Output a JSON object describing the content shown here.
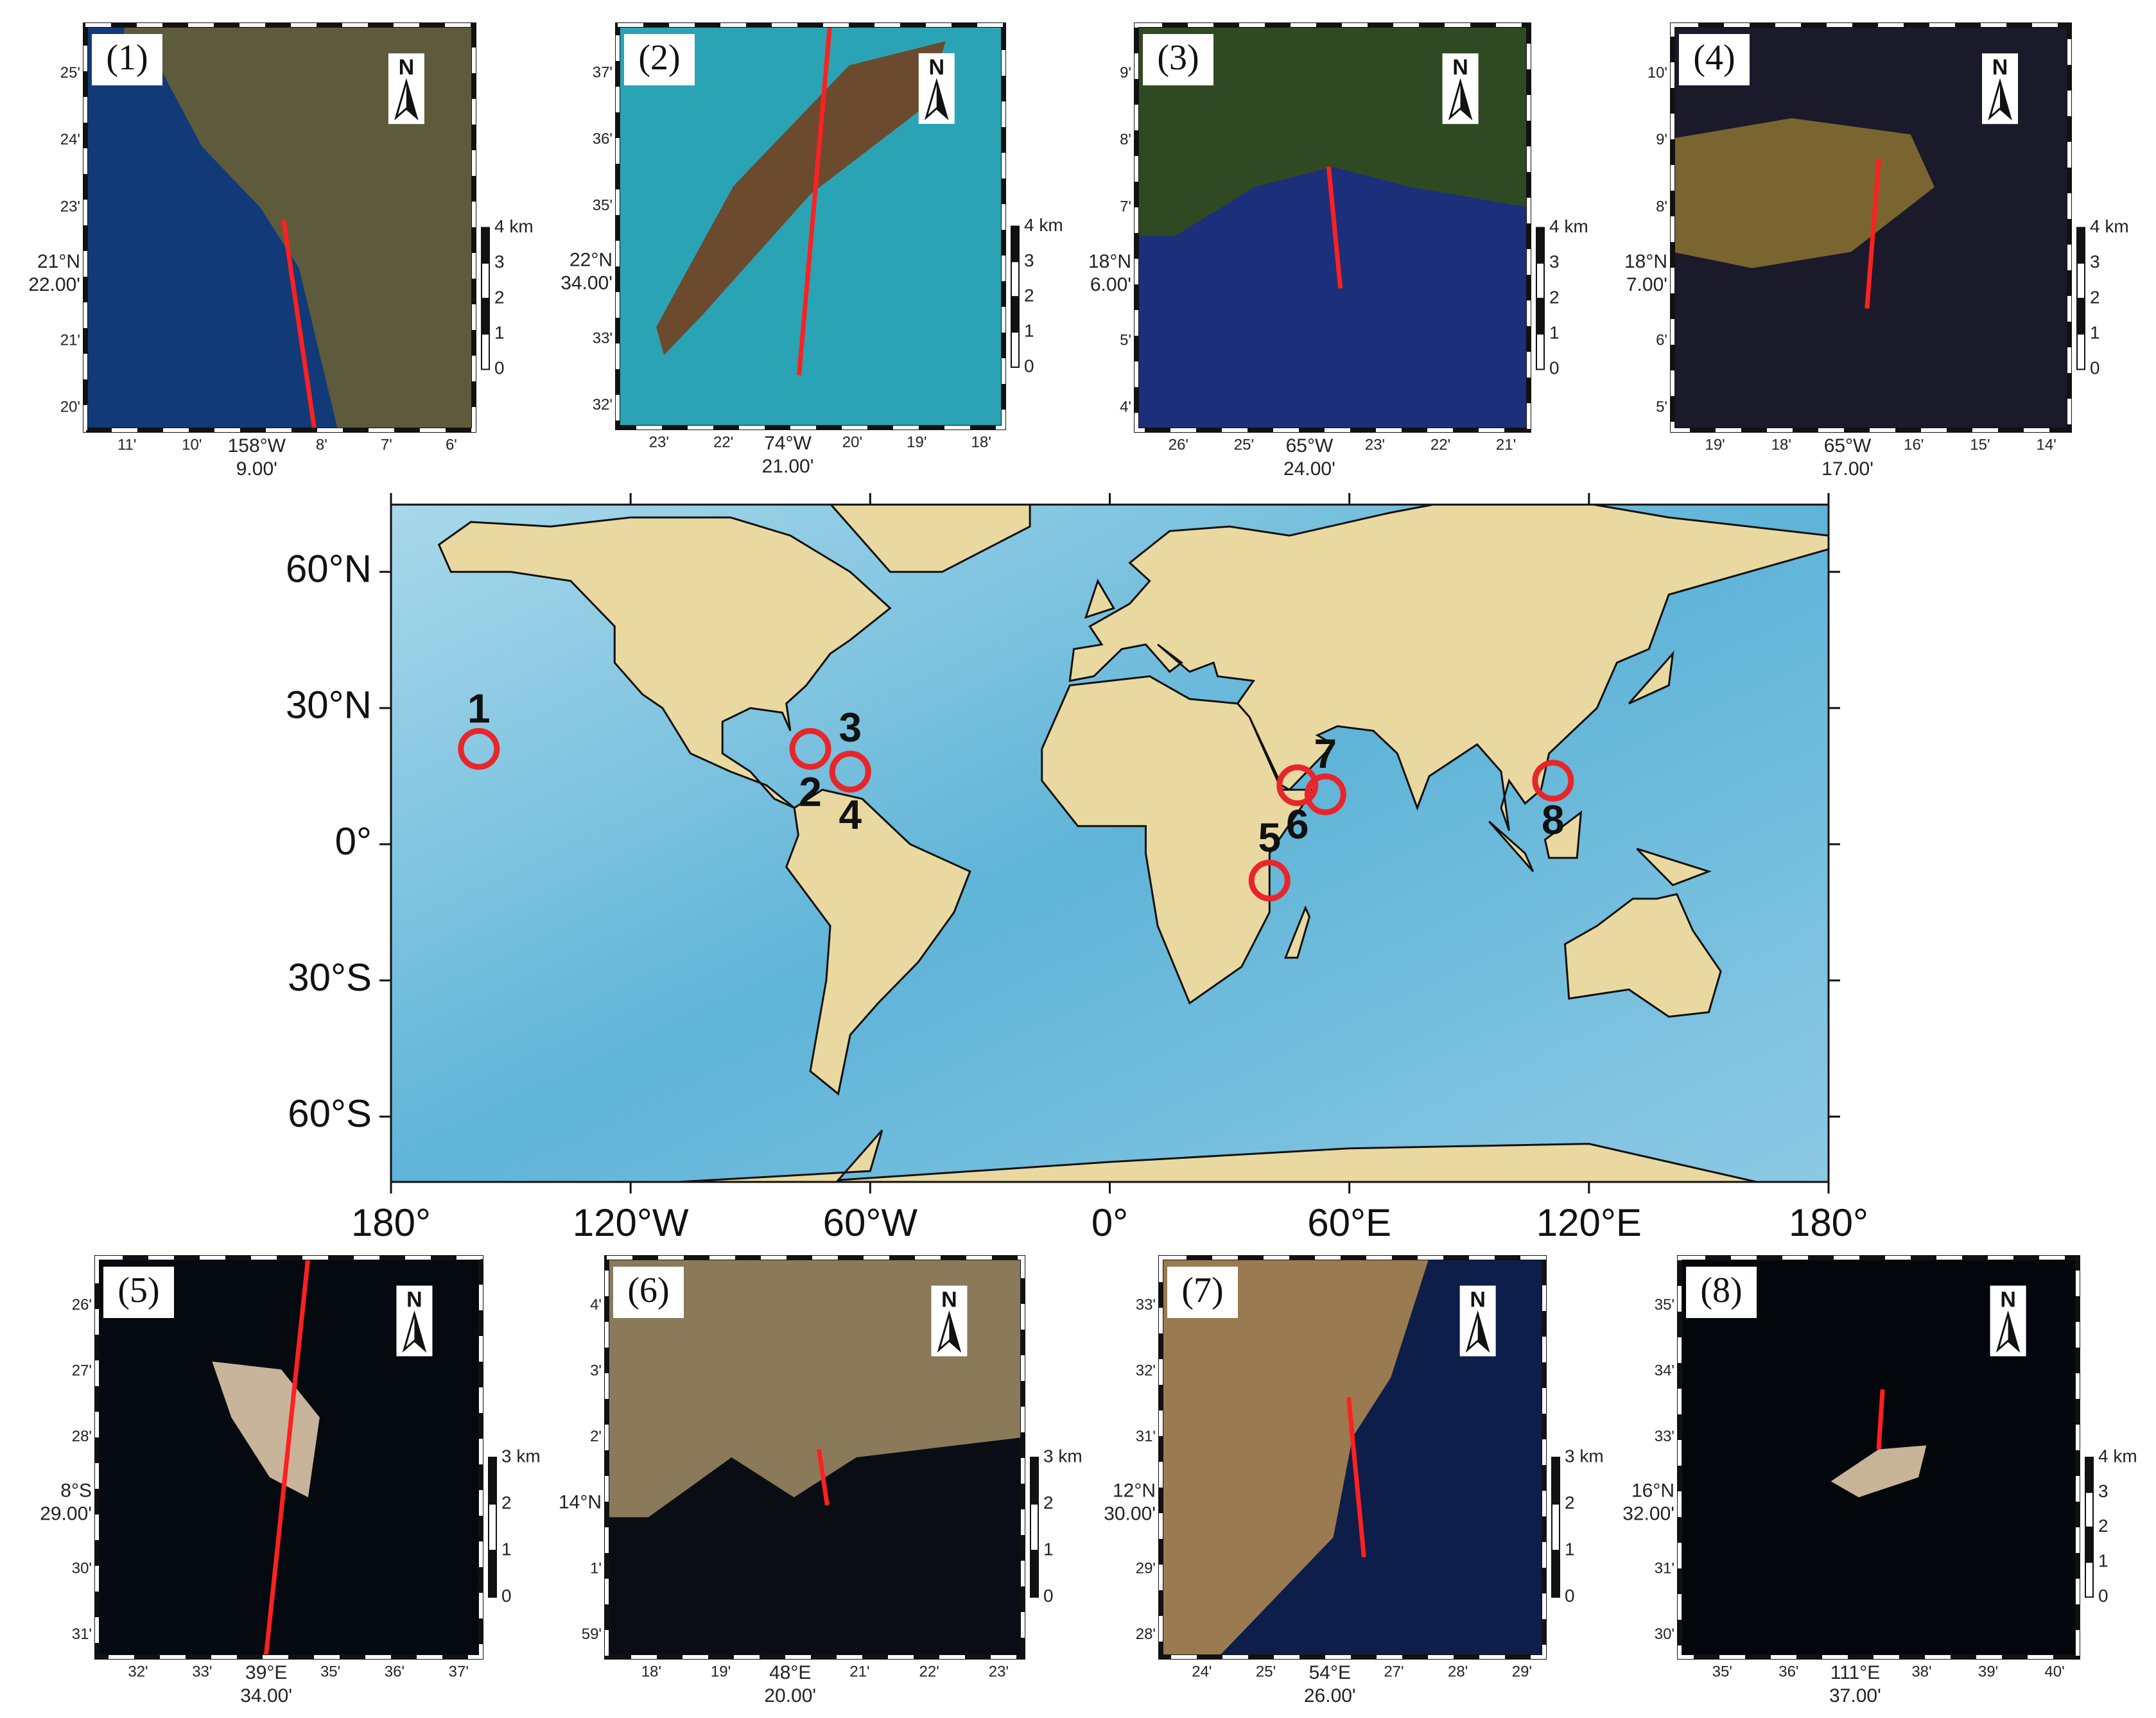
{
  "main_map": {
    "lat_ticks": [
      "60°N",
      "30°N",
      "0°",
      "30°S",
      "60°S"
    ],
    "lon_ticks": [
      "180°",
      "120°W",
      "60°W",
      "0°",
      "60°E",
      "120°E",
      "180°"
    ],
    "sites": [
      "1",
      "2",
      "3",
      "4",
      "5",
      "6",
      "7",
      "8"
    ]
  },
  "panels": [
    {
      "label": "(1)",
      "north": "N",
      "y_ticks": [
        "25'",
        "24'",
        "23'",
        "21'",
        "20'"
      ],
      "x_ticks": [
        "11'",
        "10'",
        "8'",
        "7'",
        "6'"
      ],
      "center_lat": [
        "21°N",
        "22.00'"
      ],
      "center_lon": [
        "158°W",
        "9.00'"
      ],
      "scale_labels": [
        "4 km",
        "3",
        "2",
        "1",
        "0"
      ]
    },
    {
      "label": "(2)",
      "north": "N",
      "y_ticks": [
        "37'",
        "36'",
        "35'",
        "33'",
        "32'"
      ],
      "x_ticks": [
        "23'",
        "22'",
        "20'",
        "19'",
        "18'"
      ],
      "center_lat": [
        "22°N",
        "34.00'"
      ],
      "center_lon": [
        "74°W",
        "21.00'"
      ],
      "scale_labels": [
        "4 km",
        "3",
        "2",
        "1",
        "0"
      ]
    },
    {
      "label": "(3)",
      "north": "N",
      "y_ticks": [
        "9'",
        "8'",
        "7'",
        "5'",
        "4'"
      ],
      "x_ticks": [
        "26'",
        "25'",
        "23'",
        "22'",
        "21'"
      ],
      "center_lat": [
        "18°N",
        "6.00'"
      ],
      "center_lon": [
        "65°W",
        "24.00'"
      ],
      "scale_labels": [
        "4 km",
        "3",
        "2",
        "1",
        "0"
      ]
    },
    {
      "label": "(4)",
      "north": "N",
      "y_ticks": [
        "10'",
        "9'",
        "8'",
        "6'",
        "5'"
      ],
      "x_ticks": [
        "19'",
        "18'",
        "16'",
        "15'",
        "14'"
      ],
      "center_lat": [
        "18°N",
        "7.00'"
      ],
      "center_lon": [
        "65°W",
        "17.00'"
      ],
      "scale_labels": [
        "4 km",
        "3",
        "2",
        "1",
        "0"
      ]
    },
    {
      "label": "(5)",
      "north": "N",
      "y_ticks": [
        "26'",
        "27'",
        "28'",
        "30'",
        "31'"
      ],
      "x_ticks": [
        "32'",
        "33'",
        "35'",
        "36'",
        "37'"
      ],
      "center_lat": [
        "8°S",
        "29.00'"
      ],
      "center_lon": [
        "39°E",
        "34.00'"
      ],
      "scale_labels": [
        "3 km",
        "2",
        "1",
        "0"
      ]
    },
    {
      "label": "(6)",
      "north": "N",
      "y_ticks": [
        "4'",
        "3'",
        "2'",
        "1'",
        "59'"
      ],
      "x_ticks": [
        "18'",
        "19'",
        "21'",
        "22'",
        "23'"
      ],
      "center_lat": [
        "14°N"
      ],
      "center_lon": [
        "48°E",
        "20.00'"
      ],
      "scale_labels": [
        "3 km",
        "2",
        "1",
        "0"
      ]
    },
    {
      "label": "(7)",
      "north": "N",
      "y_ticks": [
        "33'",
        "32'",
        "31'",
        "29'",
        "28'"
      ],
      "x_ticks": [
        "24'",
        "25'",
        "27'",
        "28'",
        "29'"
      ],
      "center_lat": [
        "12°N",
        "30.00'"
      ],
      "center_lon": [
        "54°E",
        "26.00'"
      ],
      "scale_labels": [
        "3 km",
        "2",
        "1",
        "0"
      ]
    },
    {
      "label": "(8)",
      "north": "N",
      "y_ticks": [
        "35'",
        "34'",
        "33'",
        "31'",
        "30'"
      ],
      "x_ticks": [
        "35'",
        "36'",
        "38'",
        "39'",
        "40'"
      ],
      "center_lat": [
        "16°N",
        "32.00'"
      ],
      "center_lon": [
        "111°E",
        "37.00'"
      ],
      "scale_labels": [
        "4 km",
        "3",
        "2",
        "1",
        "0"
      ]
    }
  ]
}
